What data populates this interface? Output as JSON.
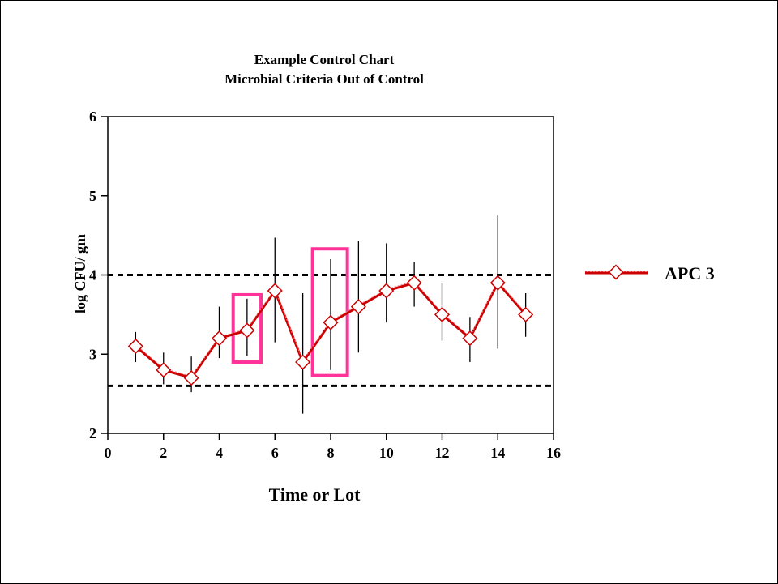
{
  "chart_data": {
    "type": "line",
    "title": "Example Control Chart",
    "subtitle": "Microbial Criteria Out of Control",
    "xlabel": "Time or Lot",
    "ylabel": "log CFU/ gm",
    "xlim": [
      0,
      16
    ],
    "ylim": [
      2,
      6
    ],
    "x_ticks": [
      "0",
      "2",
      "4",
      "6",
      "8",
      "10",
      "12",
      "14",
      "16"
    ],
    "y_ticks": [
      "2",
      "3",
      "4",
      "5",
      "6"
    ],
    "grid": false,
    "legend_position": "right",
    "control_limits": {
      "upper": 4.0,
      "lower": 2.6
    },
    "series": [
      {
        "name": "APC 3",
        "color": "#cc0000",
        "x": [
          1,
          2,
          3,
          4,
          5,
          6,
          7,
          8,
          9,
          10,
          11,
          12,
          13,
          14,
          15
        ],
        "y": [
          3.1,
          2.8,
          2.7,
          3.2,
          3.3,
          3.8,
          2.9,
          3.4,
          3.6,
          3.8,
          3.9,
          3.5,
          3.2,
          3.9,
          3.5
        ],
        "error_low": [
          2.9,
          2.62,
          2.52,
          2.95,
          2.98,
          3.15,
          2.25,
          2.8,
          3.02,
          3.4,
          3.6,
          3.17,
          2.9,
          3.07,
          3.22
        ],
        "error_high": [
          3.28,
          3.02,
          2.97,
          3.6,
          3.7,
          4.47,
          3.77,
          4.2,
          4.43,
          4.4,
          4.16,
          3.9,
          3.47,
          4.75,
          3.77
        ]
      }
    ],
    "highlights": [
      {
        "x_range": [
          4.5,
          5.5
        ],
        "y_range": [
          2.9,
          3.75
        ],
        "color": "#ff3399"
      },
      {
        "x_range": [
          7.35,
          8.6
        ],
        "y_range": [
          2.73,
          4.33
        ],
        "color": "#ff3399"
      }
    ]
  }
}
